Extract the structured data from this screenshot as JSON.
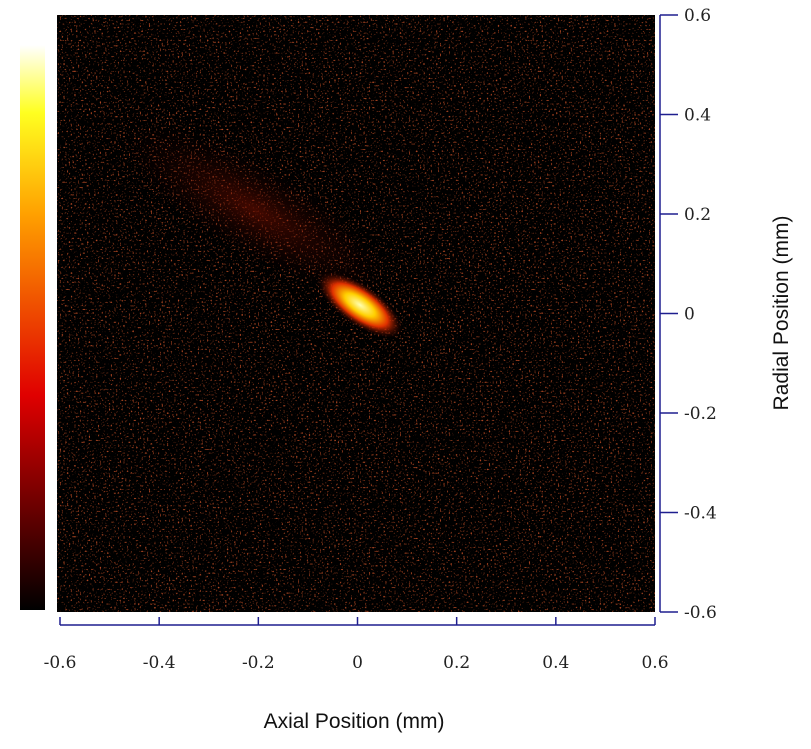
{
  "chart_data": {
    "type": "heatmap",
    "xlabel": "Axial Position (mm)",
    "ylabel": "Radial Position (mm)",
    "xlim": [
      -0.6,
      0.6
    ],
    "xticks": [
      -0.6,
      -0.4,
      -0.2,
      0,
      0.2,
      0.4,
      0.6
    ],
    "ylim": [
      -0.6,
      0.6
    ],
    "yticks": [
      -0.6,
      -0.4,
      -0.2,
      0,
      0.2,
      0.4,
      0.6
    ],
    "colormap": "hot",
    "axis_color": "#1f1f8f"
  }
}
